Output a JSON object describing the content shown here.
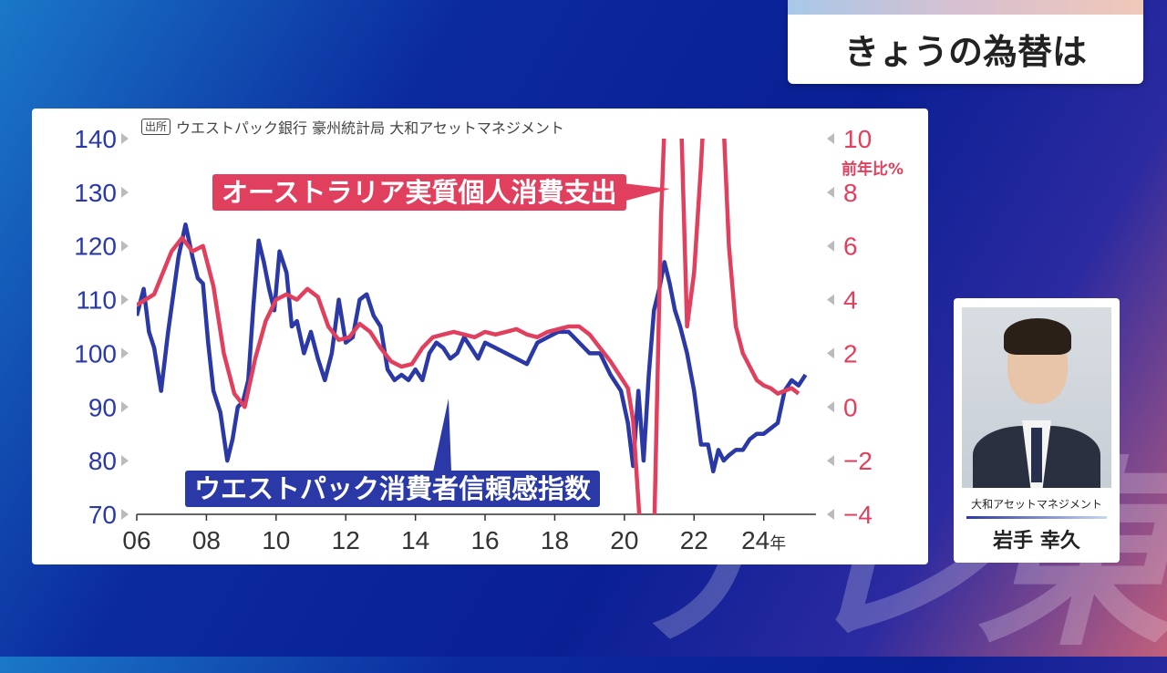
{
  "corner_title": "きょうの為替は",
  "watermark": "テレ東",
  "presenter": {
    "org": "大和アセットマネジメント",
    "name": "岩手 幸久"
  },
  "chart_data": {
    "type": "line",
    "source_tag": "出所",
    "source": "ウエストパック銀行 豪州統計局 大和アセットマネジメント",
    "right_unit": "前年比%",
    "left_ticks": [
      "140",
      "130",
      "120",
      "110",
      "100",
      "90",
      "80",
      "70"
    ],
    "right_ticks": [
      "10",
      "8",
      "6",
      "4",
      "2",
      "0",
      "−2",
      "−4"
    ],
    "x_ticks": [
      "06",
      "08",
      "10",
      "12",
      "14",
      "16",
      "18",
      "20",
      "22",
      "24年"
    ],
    "left_ylim": [
      70,
      140
    ],
    "right_ylim": [
      -4,
      10
    ],
    "x_range": [
      2006,
      2025.5
    ],
    "colors": {
      "blue": "#2a39a6",
      "red": "#e0405e"
    },
    "callouts": {
      "red": "オーストラリア実質個人消費支出",
      "blue": "ウエストパック消費者信頼感指数"
    },
    "series": [
      {
        "name": "ウエストパック消費者信頼感指数",
        "axis": "left",
        "x": [
          2006.0,
          2006.2,
          2006.35,
          2006.5,
          2006.7,
          2006.9,
          2007.05,
          2007.2,
          2007.4,
          2007.6,
          2007.75,
          2007.9,
          2008.05,
          2008.2,
          2008.4,
          2008.6,
          2008.75,
          2008.9,
          2009.05,
          2009.2,
          2009.35,
          2009.5,
          2009.65,
          2009.8,
          2009.95,
          2010.1,
          2010.3,
          2010.45,
          2010.6,
          2010.8,
          2011.0,
          2011.2,
          2011.4,
          2011.6,
          2011.8,
          2012.0,
          2012.2,
          2012.4,
          2012.6,
          2012.8,
          2013.0,
          2013.2,
          2013.4,
          2013.6,
          2013.8,
          2014.0,
          2014.2,
          2014.4,
          2014.6,
          2014.8,
          2015.0,
          2015.2,
          2015.4,
          2015.6,
          2015.8,
          2016.0,
          2016.3,
          2016.6,
          2016.9,
          2017.2,
          2017.5,
          2017.8,
          2018.1,
          2018.4,
          2018.7,
          2019.0,
          2019.3,
          2019.6,
          2019.9,
          2020.1,
          2020.25,
          2020.4,
          2020.55,
          2020.7,
          2020.85,
          2021.0,
          2021.15,
          2021.3,
          2021.45,
          2021.6,
          2021.8,
          2022.0,
          2022.2,
          2022.4,
          2022.55,
          2022.7,
          2022.85,
          2023.0,
          2023.2,
          2023.4,
          2023.6,
          2023.8,
          2024.0,
          2024.2,
          2024.4,
          2024.6,
          2024.8,
          2025.0,
          2025.2
        ],
        "values": [
          107,
          112,
          104,
          101,
          93,
          104,
          111,
          118,
          124,
          118,
          114,
          113,
          102,
          93,
          89,
          80,
          84,
          90,
          91,
          95,
          109,
          121,
          117,
          112,
          108,
          119,
          115,
          105,
          106,
          100,
          104,
          99,
          95,
          100,
          110,
          102,
          103,
          110,
          111,
          107,
          105,
          97,
          95,
          96,
          95,
          97,
          95,
          100,
          102,
          101,
          99,
          100,
          103,
          101,
          99,
          102,
          101,
          100,
          99,
          98,
          102,
          103,
          104,
          104,
          102,
          100,
          100,
          96,
          93,
          87,
          79,
          93,
          80,
          96,
          108,
          112,
          117,
          113,
          108,
          105,
          100,
          93,
          83,
          83,
          78,
          82,
          80,
          81,
          82,
          82,
          84,
          85,
          85,
          86,
          87,
          93,
          95,
          94,
          96
        ]
      },
      {
        "name": "オーストラリア実質個人消費支出",
        "axis": "right",
        "x": [
          2006.0,
          2006.5,
          2007.0,
          2007.3,
          2007.6,
          2007.9,
          2008.2,
          2008.5,
          2008.8,
          2009.1,
          2009.4,
          2009.7,
          2010.0,
          2010.3,
          2010.6,
          2010.9,
          2011.2,
          2011.5,
          2011.8,
          2012.1,
          2012.4,
          2012.7,
          2013.0,
          2013.3,
          2013.6,
          2013.9,
          2014.2,
          2014.5,
          2014.8,
          2015.1,
          2015.4,
          2015.7,
          2016.0,
          2016.3,
          2016.6,
          2016.9,
          2017.2,
          2017.5,
          2017.8,
          2018.1,
          2018.4,
          2018.7,
          2019.0,
          2019.3,
          2019.6,
          2019.9,
          2020.1,
          2020.25,
          2020.45,
          2020.65,
          2020.85,
          2021.05,
          2021.25,
          2021.45,
          2021.6,
          2021.8,
          2022.0,
          2022.2,
          2022.4,
          2022.6,
          2022.8,
          2023.0,
          2023.2,
          2023.4,
          2023.6,
          2023.8,
          2024.0,
          2024.2,
          2024.4,
          2024.6,
          2024.8,
          2025.0
        ],
        "values": [
          3.8,
          4.2,
          5.8,
          6.3,
          5.8,
          6.0,
          4.5,
          2.0,
          0.5,
          0.0,
          1.8,
          3.2,
          4.0,
          4.2,
          4.0,
          4.4,
          4.1,
          3.0,
          2.5,
          2.6,
          3.1,
          2.8,
          2.2,
          1.7,
          1.5,
          1.6,
          2.2,
          2.6,
          2.7,
          2.8,
          2.7,
          2.6,
          2.8,
          2.7,
          2.8,
          2.9,
          2.7,
          2.6,
          2.8,
          2.9,
          3.0,
          3.0,
          2.7,
          2.2,
          1.7,
          1.1,
          0.7,
          -0.5,
          -4.5,
          -11,
          -5,
          7,
          14,
          20,
          12,
          3,
          5,
          9,
          14,
          17,
          12,
          6,
          3,
          2,
          1.5,
          1.0,
          0.8,
          0.7,
          0.5,
          0.6,
          0.7,
          0.5
        ]
      }
    ]
  }
}
